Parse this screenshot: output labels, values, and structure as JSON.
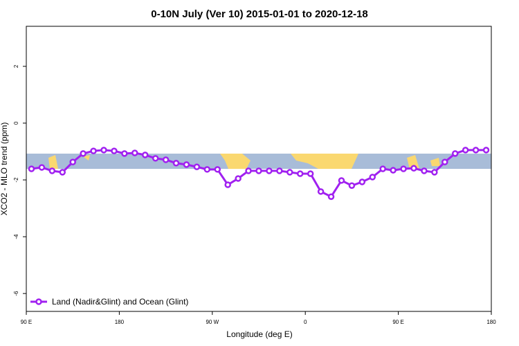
{
  "chart_data": {
    "type": "line",
    "title": "0-10N July (Ver 10)   2015-01-01 to 2020-12-18",
    "x_label": "Longitude (deg E)",
    "y_label": "XCO2 - MLO trend (ppm)",
    "x": [
      95,
      105,
      115,
      125,
      135,
      145,
      155,
      165,
      175,
      185,
      195,
      205,
      215,
      225,
      235,
      245,
      255,
      265,
      275,
      285,
      295,
      305,
      315,
      325,
      335,
      345,
      355,
      365,
      375,
      385,
      395,
      405,
      415,
      425,
      435,
      445,
      455,
      465,
      475,
      485,
      495,
      505,
      515,
      525,
      535
    ],
    "series": [
      {
        "name": "Land (Nadir&Glint) and Ocean (Glint)",
        "color": "#a020f0",
        "values": [
          -1.61,
          -1.56,
          -1.68,
          -1.73,
          -1.37,
          -1.07,
          -0.98,
          -0.95,
          -0.98,
          -1.07,
          -1.05,
          -1.12,
          -1.24,
          -1.29,
          -1.41,
          -1.46,
          -1.54,
          -1.63,
          -1.63,
          -2.17,
          -1.95,
          -1.68,
          -1.68,
          -1.68,
          -1.68,
          -1.73,
          -1.78,
          -1.78,
          -2.41,
          -2.59,
          -2.02,
          -2.2,
          -2.07,
          -1.9,
          -1.61,
          -1.66,
          -1.61,
          -1.59,
          -1.68,
          -1.73,
          -1.37,
          -1.07,
          -0.95,
          -0.95,
          -0.95
        ]
      }
    ],
    "xlim": [
      90,
      540
    ],
    "xticks": [
      {
        "value": 90,
        "label": "90 E"
      },
      180,
      {
        "value": 270,
        "label": "90 W"
      },
      {
        "value": 360,
        "label": "0"
      },
      {
        "value": 450,
        "label": "90 E"
      },
      {
        "value": 540,
        "label": "180"
      }
    ],
    "ylim": [
      -6.63,
      3.41
    ],
    "yticks": [
      2,
      0,
      -2,
      -4,
      -6
    ],
    "legend": "bottom-left"
  }
}
